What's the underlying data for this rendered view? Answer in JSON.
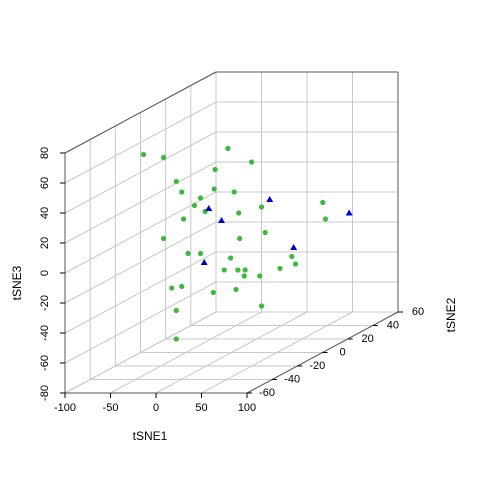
{
  "chart_data": {
    "type": "scatter3d",
    "x_label": "tSNE1",
    "y_label": "tSNE2",
    "z_label": "tSNE3",
    "xlim": [
      -100,
      100
    ],
    "ylim": [
      -60,
      60
    ],
    "zlim": [
      -80,
      80
    ],
    "xticks": [
      -100,
      -50,
      0,
      50,
      100
    ],
    "yticks": [
      -60,
      -40,
      -20,
      0,
      20,
      40,
      60
    ],
    "zticks": [
      -80,
      -60,
      -40,
      -20,
      0,
      20,
      40,
      60,
      80
    ],
    "grid": true,
    "series": [
      {
        "color": "#3cb93c",
        "marker": "circle",
        "x": [
          -69,
          -47,
          -33,
          -27,
          -13,
          -25,
          -47,
          -20,
          -27,
          -38,
          -33,
          -33,
          -4,
          22,
          -18,
          -19,
          3,
          -34,
          -29,
          8,
          33,
          9,
          37,
          -34,
          -1,
          -8,
          7,
          15,
          14,
          31,
          -20,
          5,
          33,
          45,
          48,
          11,
          15,
          -2
        ],
        "y": [
          -20,
          -20,
          -20,
          -20,
          -20,
          -20,
          -20,
          -20,
          -20,
          -20,
          -20,
          -20,
          0,
          0,
          0,
          0,
          0,
          0,
          0,
          0,
          0,
          0,
          0,
          0,
          0,
          0,
          0,
          0,
          0,
          0,
          0,
          0,
          0,
          40,
          40,
          40,
          40,
          40
        ],
        "z": [
          61,
          59,
          43,
          36,
          27,
          18,
          5,
          -5,
          -27,
          -28,
          -43,
          -62,
          56,
          47,
          42,
          29,
          27,
          23,
          14,
          13,
          17,
          -4,
          0,
          -14,
          -17,
          -25,
          -25,
          -25,
          -29,
          -29,
          -40,
          -38,
          -49,
          2,
          -9,
          -34,
          -39,
          -42
        ]
      },
      {
        "color": "#0000cc",
        "marker": "triangle",
        "x": [
          -25,
          -11,
          42,
          -30,
          74,
          13
        ],
        "y": [
          0,
          0,
          0,
          0,
          40,
          40
        ],
        "z": [
          16,
          8,
          22,
          -20,
          -5,
          -28
        ]
      }
    ]
  }
}
